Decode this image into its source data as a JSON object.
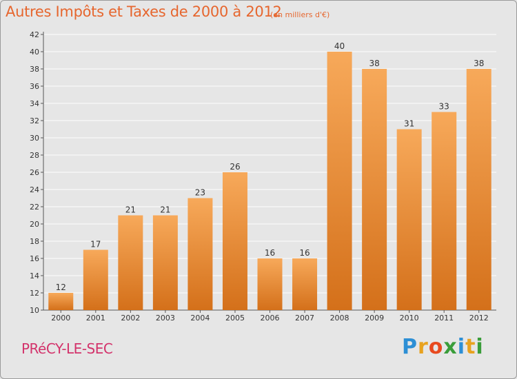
{
  "header": {
    "title": "Autres Impôts et Taxes de 2000 à 2012",
    "subtitle": "(en milliers d'€)"
  },
  "footer": {
    "commune": "PRéCY-LE-SEC",
    "brand": "Proxiti"
  },
  "colors": {
    "bar_light": "#f7a95a",
    "bar_dark": "#d4701a",
    "accent": "#e6662e",
    "commune": "#d3336b",
    "grid": "#ffffff"
  },
  "chart_data": {
    "type": "bar",
    "title": "Autres Impôts et Taxes de 2000 à 2012",
    "subtitle": "(en milliers d'€)",
    "categories": [
      "2000",
      "2001",
      "2002",
      "2003",
      "2004",
      "2005",
      "2006",
      "2007",
      "2008",
      "2009",
      "2010",
      "2011",
      "2012"
    ],
    "values": [
      12,
      17,
      21,
      21,
      23,
      26,
      16,
      16,
      40,
      38,
      31,
      33,
      38
    ],
    "ylim": [
      10,
      42
    ],
    "yticks": [
      10,
      12,
      14,
      16,
      18,
      20,
      22,
      24,
      26,
      28,
      30,
      32,
      34,
      36,
      38,
      40,
      42
    ],
    "grid": true,
    "data_labels": true
  }
}
